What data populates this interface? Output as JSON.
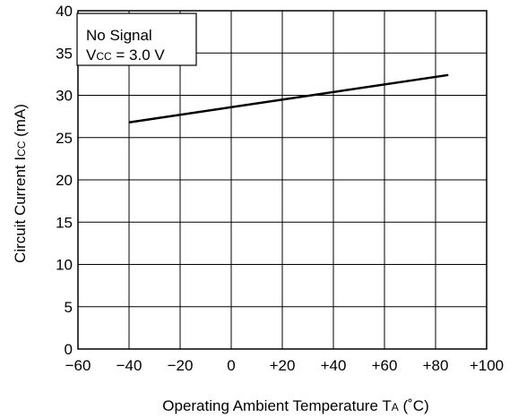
{
  "chart_data": {
    "type": "line",
    "x_tick_labels": [
      "−60",
      "−40",
      "−20",
      "0",
      "+20",
      "+40",
      "+60",
      "+80",
      "+100"
    ],
    "y_tick_labels": [
      "0",
      "5",
      "10",
      "15",
      "20",
      "25",
      "30",
      "35",
      "40"
    ],
    "xlim": [
      -60,
      100
    ],
    "ylim": [
      0,
      40
    ],
    "xlabel": {
      "main": "Operating Ambient Temperature  T",
      "sub": "A",
      "unit": "  (˚C)"
    },
    "ylabel": {
      "main": "Circuit Current  I",
      "sub": "CC",
      "unit": " (mA)"
    },
    "annotation": {
      "line1": "No Signal",
      "line2_main": "V",
      "line2_sub": "CC",
      "line2_rest": " = 3.0 V"
    },
    "grid": true,
    "series": [
      {
        "x": [
          -40,
          85
        ],
        "y": [
          26.8,
          32.4
        ],
        "color": "#000000"
      }
    ]
  }
}
